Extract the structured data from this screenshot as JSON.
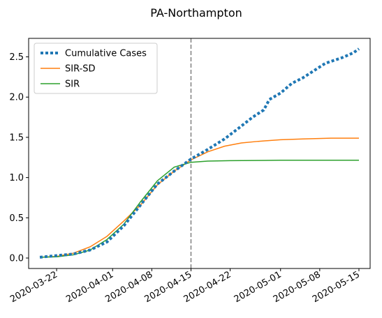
{
  "chart_data": {
    "type": "line",
    "title": "PA-Northampton",
    "xlabel": "",
    "ylabel": "",
    "x_axis": {
      "type": "date",
      "range": [
        "2020-03-17",
        "2020-05-17"
      ],
      "ticks": [
        "2020-03-22",
        "2020-04-01",
        "2020-04-08",
        "2020-04-15",
        "2020-04-22",
        "2020-05-01",
        "2020-05-08",
        "2020-05-15"
      ]
    },
    "y_axis": {
      "range": [
        -0.13,
        2.73
      ],
      "ticks": [
        "0.0",
        "0.5",
        "1.0",
        "1.5",
        "2.0",
        "2.5"
      ]
    },
    "grid": false,
    "legend": "upper-left",
    "reference_line": {
      "x": "2020-04-15",
      "style": "dashed",
      "color": "#808080"
    },
    "series": [
      {
        "name": "Cumulative Cases",
        "style": "dotted",
        "color": "#1f77b4",
        "points": [
          [
            "2020-03-19",
            0.01
          ],
          [
            "2020-03-22",
            0.03
          ],
          [
            "2020-03-25",
            0.05
          ],
          [
            "2020-03-28",
            0.1
          ],
          [
            "2020-03-31",
            0.2
          ],
          [
            "2020-04-03",
            0.4
          ],
          [
            "2020-04-06",
            0.66
          ],
          [
            "2020-04-09",
            0.92
          ],
          [
            "2020-04-12",
            1.08
          ],
          [
            "2020-04-15",
            1.23
          ],
          [
            "2020-04-18",
            1.35
          ],
          [
            "2020-04-21",
            1.48
          ],
          [
            "2020-04-24",
            1.64
          ],
          [
            "2020-04-26",
            1.75
          ],
          [
            "2020-04-28",
            1.84
          ],
          [
            "2020-04-29",
            1.97
          ],
          [
            "2020-05-01",
            2.05
          ],
          [
            "2020-05-03",
            2.17
          ],
          [
            "2020-05-05",
            2.24
          ],
          [
            "2020-05-07",
            2.33
          ],
          [
            "2020-05-09",
            2.42
          ],
          [
            "2020-05-12",
            2.49
          ],
          [
            "2020-05-14",
            2.55
          ],
          [
            "2020-05-15",
            2.6
          ]
        ]
      },
      {
        "name": "SIR-SD",
        "style": "solid",
        "color": "#ff7f0e",
        "points": [
          [
            "2020-03-19",
            0.01
          ],
          [
            "2020-03-22",
            0.02
          ],
          [
            "2020-03-25",
            0.06
          ],
          [
            "2020-03-28",
            0.14
          ],
          [
            "2020-03-31",
            0.27
          ],
          [
            "2020-04-03",
            0.46
          ],
          [
            "2020-04-06",
            0.66
          ],
          [
            "2020-04-09",
            0.91
          ],
          [
            "2020-04-12",
            1.08
          ],
          [
            "2020-04-15",
            1.22
          ],
          [
            "2020-04-18",
            1.32
          ],
          [
            "2020-04-21",
            1.39
          ],
          [
            "2020-04-24",
            1.43
          ],
          [
            "2020-04-27",
            1.45
          ],
          [
            "2020-05-01",
            1.47
          ],
          [
            "2020-05-05",
            1.48
          ],
          [
            "2020-05-10",
            1.49
          ],
          [
            "2020-05-15",
            1.49
          ]
        ]
      },
      {
        "name": "SIR",
        "style": "solid",
        "color": "#2ca02c",
        "points": [
          [
            "2020-03-19",
            0.01
          ],
          [
            "2020-03-22",
            0.015
          ],
          [
            "2020-03-25",
            0.04
          ],
          [
            "2020-03-28",
            0.1
          ],
          [
            "2020-03-31",
            0.23
          ],
          [
            "2020-04-03",
            0.42
          ],
          [
            "2020-04-06",
            0.7
          ],
          [
            "2020-04-09",
            0.96
          ],
          [
            "2020-04-12",
            1.13
          ],
          [
            "2020-04-15",
            1.19
          ],
          [
            "2020-04-18",
            1.205
          ],
          [
            "2020-04-22",
            1.21
          ],
          [
            "2020-05-01",
            1.215
          ],
          [
            "2020-05-15",
            1.215
          ]
        ]
      }
    ]
  }
}
